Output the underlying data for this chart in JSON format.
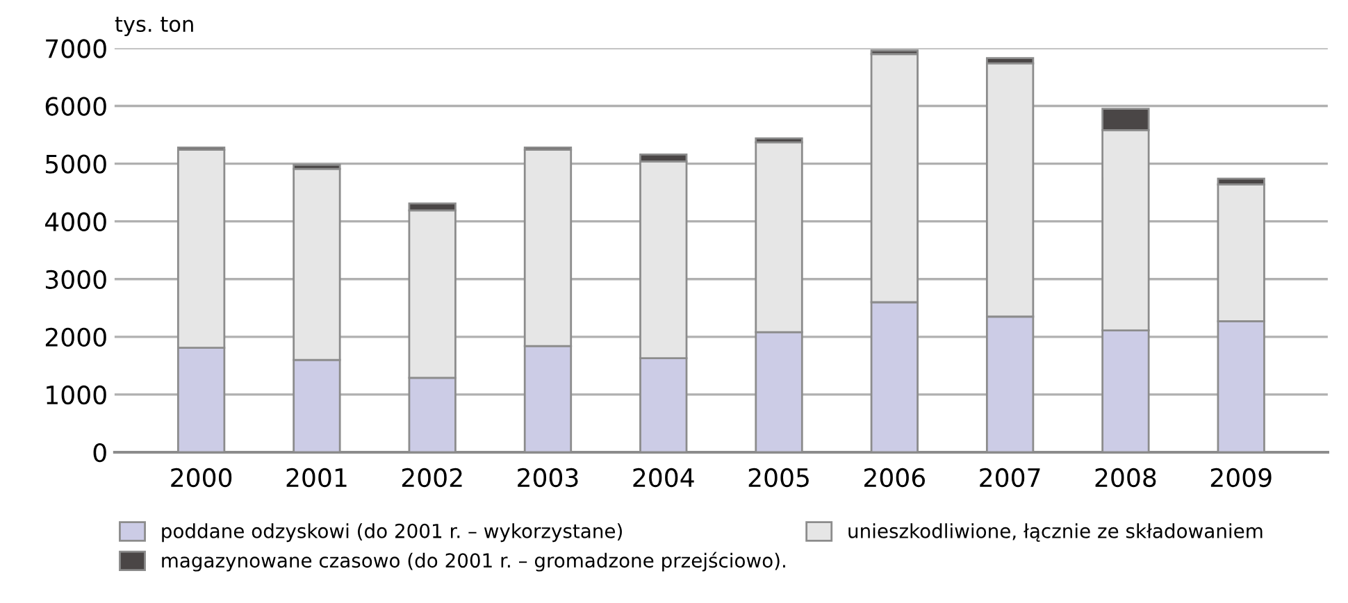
{
  "chart_data": {
    "type": "bar",
    "stacked": true,
    "ylabel": "tys. ton",
    "categories": [
      "2000",
      "2001",
      "2002",
      "2003",
      "2004",
      "2005",
      "2006",
      "2007",
      "2008",
      "2009"
    ],
    "series": [
      {
        "name": "poddane odzyskowi (do 2001 r. – wykorzystane)",
        "color": "#cccce6",
        "values": [
          1810,
          1600,
          1290,
          1840,
          1630,
          2080,
          2600,
          2350,
          2110,
          2270
        ]
      },
      {
        "name": "unieszkodliwione, łącznie ze składowaniem",
        "color": "#e6e6e6",
        "values": [
          3430,
          3310,
          2900,
          3400,
          3410,
          3290,
          4300,
          4390,
          3470,
          2370
        ]
      },
      {
        "name": "magazynowane czasowo (do 2001 r. – gromadzone przejściowo).",
        "color": "#4a4646",
        "values": [
          40,
          70,
          120,
          40,
          120,
          70,
          60,
          90,
          370,
          100
        ]
      }
    ],
    "ylim": [
      0,
      7000
    ],
    "yticks": [
      0,
      1000,
      2000,
      3000,
      4000,
      5000,
      6000,
      7000
    ],
    "grid": "y",
    "legend": "bottom"
  }
}
